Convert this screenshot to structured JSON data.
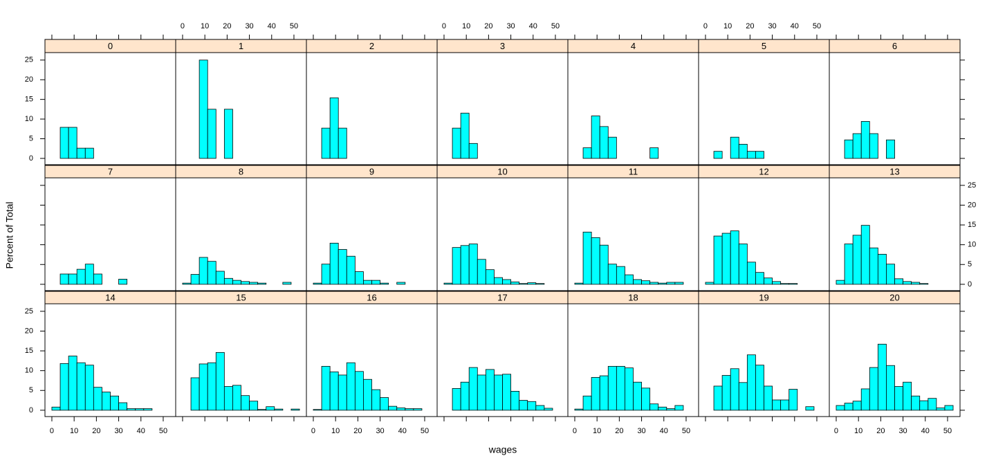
{
  "chart_data": {
    "type": "histogram",
    "xlabel": "wages",
    "ylabel": "Percent of Total",
    "color": "#00ffff",
    "strip_color": "#ffe5cc",
    "bins": [
      0,
      3.75,
      7.5,
      11.25,
      15,
      18.75,
      22.5,
      26.25,
      30,
      33.75,
      37.5,
      41.25,
      45,
      48.75,
      52.5
    ],
    "xlim": [
      -3.1,
      55.6
    ],
    "xticks": [
      0,
      10,
      20,
      30,
      40,
      50
    ],
    "ylim": [
      -1.6,
      26.9
    ],
    "yticks": [
      0,
      5,
      10,
      15,
      20,
      25
    ],
    "panels": [
      {
        "label": "0",
        "values": [
          0,
          7.9,
          7.9,
          2.6,
          2.6,
          0,
          0,
          0,
          0,
          0,
          0,
          0,
          0,
          0
        ]
      },
      {
        "label": "1",
        "values": [
          0,
          0,
          25,
          12.5,
          0,
          12.5,
          0,
          0,
          0,
          0,
          0,
          0,
          0,
          0
        ]
      },
      {
        "label": "2",
        "values": [
          0,
          7.7,
          15.4,
          7.7,
          0,
          0,
          0,
          0,
          0,
          0,
          0,
          0,
          0,
          0
        ]
      },
      {
        "label": "3",
        "values": [
          0,
          7.7,
          11.5,
          3.8,
          0,
          0,
          0,
          0,
          0,
          0,
          0,
          0,
          0,
          0
        ]
      },
      {
        "label": "4",
        "values": [
          0,
          2.7,
          10.8,
          8.1,
          5.4,
          0,
          0,
          0,
          0,
          2.7,
          0,
          0,
          0,
          0
        ]
      },
      {
        "label": "5",
        "values": [
          0,
          1.8,
          0,
          5.4,
          3.6,
          1.8,
          1.8,
          0,
          0,
          0,
          0,
          0,
          0,
          0
        ]
      },
      {
        "label": "6",
        "values": [
          0,
          4.7,
          6.3,
          9.4,
          6.3,
          0,
          4.7,
          0,
          0,
          0,
          0,
          0,
          0,
          0
        ]
      },
      {
        "label": "7",
        "values": [
          0,
          2.6,
          2.6,
          3.8,
          5.1,
          2.6,
          0,
          0,
          1.3,
          0,
          0,
          0,
          0,
          0
        ]
      },
      {
        "label": "8",
        "values": [
          0.3,
          2.5,
          6.8,
          5.8,
          3.3,
          1.5,
          1.0,
          0.7,
          0.5,
          0.3,
          0,
          0,
          0.5,
          0
        ]
      },
      {
        "label": "9",
        "values": [
          0.3,
          5.1,
          10.4,
          8.8,
          7.1,
          3.2,
          1.0,
          1.0,
          0.3,
          0,
          0.5,
          0,
          0,
          0
        ]
      },
      {
        "label": "10",
        "values": [
          0.3,
          9.3,
          9.8,
          10.2,
          6.3,
          3.7,
          1.7,
          1.2,
          0.6,
          0.2,
          0.4,
          0.2,
          0,
          0
        ]
      },
      {
        "label": "11",
        "values": [
          0.3,
          13.2,
          11.8,
          9.9,
          5.1,
          4.5,
          2.4,
          1.2,
          0.9,
          0.5,
          0.3,
          0.5,
          0.5,
          0
        ]
      },
      {
        "label": "12",
        "values": [
          0.5,
          12.2,
          12.9,
          13.5,
          10.2,
          5.6,
          3.0,
          1.6,
          0.7,
          0.2,
          0.2,
          0,
          0,
          0
        ]
      },
      {
        "label": "13",
        "values": [
          1.0,
          10.2,
          12.4,
          14.9,
          9.2,
          7.6,
          5.1,
          1.4,
          0.7,
          0.5,
          0.2,
          0,
          0,
          0
        ]
      },
      {
        "label": "14",
        "values": [
          0.8,
          11.8,
          13.7,
          12.0,
          11.4,
          5.8,
          4.6,
          3.6,
          1.9,
          0.4,
          0.4,
          0.4,
          0,
          0
        ]
      },
      {
        "label": "15",
        "values": [
          0,
          8.2,
          11.7,
          12.0,
          14.6,
          6.0,
          6.3,
          3.7,
          2.3,
          0.2,
          0.9,
          0.3,
          0,
          0.3
        ]
      },
      {
        "label": "16",
        "values": [
          0.2,
          11.1,
          9.7,
          8.9,
          12.0,
          9.8,
          7.8,
          5.2,
          3.2,
          1.0,
          0.6,
          0.4,
          0.4,
          0
        ]
      },
      {
        "label": "17",
        "values": [
          0,
          5.5,
          7.1,
          10.8,
          8.9,
          10.3,
          8.9,
          9.1,
          4.8,
          2.5,
          2.2,
          1.2,
          0.5,
          0
        ]
      },
      {
        "label": "18",
        "values": [
          0.3,
          3.6,
          8.3,
          8.7,
          11.1,
          11.1,
          10.7,
          7.1,
          5.6,
          1.6,
          0.8,
          0.4,
          1.2,
          0
        ]
      },
      {
        "label": "19",
        "values": [
          0,
          6.1,
          8.8,
          10.5,
          7.0,
          14.0,
          11.4,
          6.1,
          2.6,
          2.6,
          5.3,
          0,
          0.9,
          0
        ]
      },
      {
        "label": "20",
        "values": [
          1.2,
          1.8,
          2.3,
          5.4,
          10.8,
          16.7,
          11.3,
          6.0,
          7.1,
          3.6,
          2.4,
          3.0,
          0.6,
          1.2
        ]
      }
    ]
  }
}
